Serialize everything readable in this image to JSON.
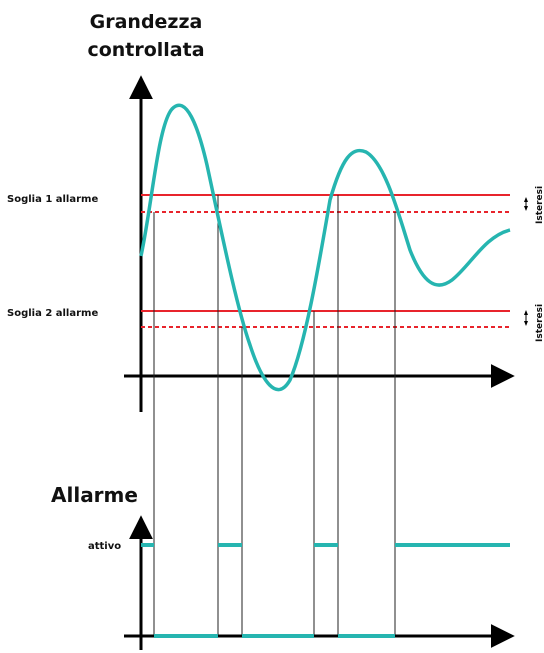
{
  "labels": {
    "title_line1": "Grandezza",
    "title_line2": "controllata",
    "threshold1": "Soglia  1 allarme",
    "threshold2": "Soglia  2 allarme",
    "hysteresis1": "Isteresi",
    "hysteresis2": "Isteresi",
    "alarm_title": "Allarme",
    "active": "attivo"
  },
  "colors": {
    "signal": "#26b5b0",
    "threshold": "#e8242c",
    "axis": "#000000",
    "guide": "#222222"
  }
}
